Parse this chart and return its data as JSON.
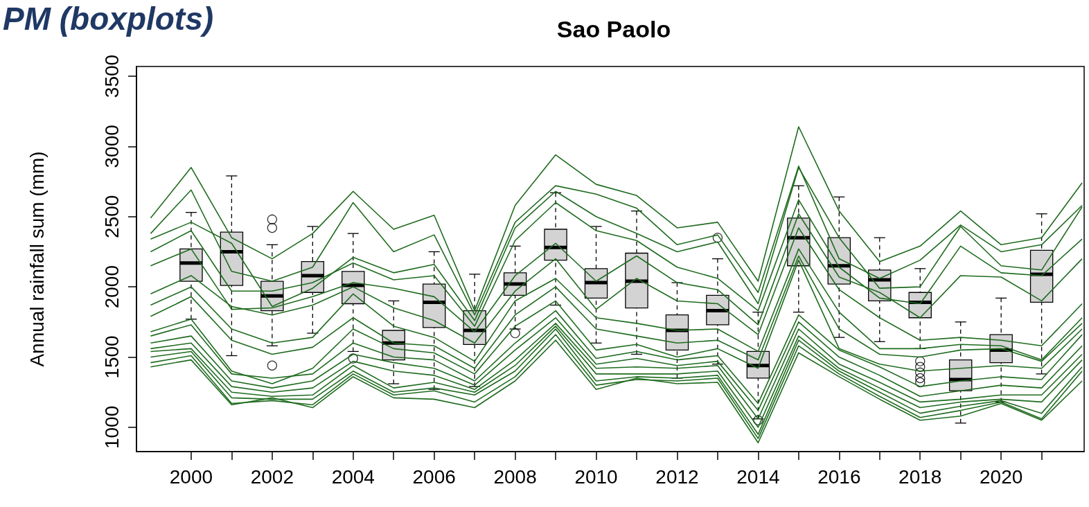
{
  "chart_data": {
    "type": "box",
    "title": "Sao Paolo",
    "ylabel": "Annual rainfall sum (mm)",
    "annotations": [
      "PM (boxplots)"
    ],
    "xlim": [
      1998.65,
      2022.05
    ],
    "xticks": [
      2000,
      {
        "value": 2001,
        "label": null
      },
      2002,
      {
        "value": 2003,
        "label": null
      },
      2004,
      {
        "value": 2005,
        "label": null
      },
      2006,
      {
        "value": 2007,
        "label": null
      },
      2008,
      {
        "value": 2009,
        "label": null
      },
      2010,
      {
        "value": 2011,
        "label": null
      },
      2012,
      {
        "value": 2013,
        "label": null
      },
      2014,
      {
        "value": 2015,
        "label": null
      },
      2016,
      {
        "value": 2017,
        "label": null
      },
      2018,
      {
        "value": 2019,
        "label": null
      },
      2020,
      {
        "value": 2021,
        "label": null
      }
    ],
    "ylim": [
      827,
      3569
    ],
    "yticks": [
      1000,
      1500,
      2000,
      2500,
      3000,
      3500
    ],
    "x": [
      1999,
      2000,
      2001,
      2002,
      2003,
      2004,
      2005,
      2006,
      2007,
      2008,
      2009,
      2010,
      2011,
      2012,
      2013,
      2014,
      2015,
      2016,
      2017,
      2018,
      2019,
      2020,
      2021,
      2022
    ],
    "series": [
      {
        "color": "#d3d3d3",
        "x": [
          2000,
          2001,
          2002,
          2003,
          2004,
          2005,
          2006,
          2007,
          2008,
          2009,
          2010,
          2011,
          2012,
          2013,
          2014,
          2015,
          2016,
          2017,
          2018,
          2019,
          2020,
          2021
        ],
        "boxes": [
          {
            "low": 1770,
            "q1": 2040,
            "median": 2170,
            "q3": 2270,
            "high": 2530
          },
          {
            "low": 1510,
            "q1": 2010,
            "median": 2250,
            "q3": 2390,
            "high": 2790
          },
          {
            "low": 1580,
            "q1": 1830,
            "median": 1935,
            "q3": 2040,
            "high": 2300,
            "outliers": [
              2480,
              2420,
              1440
            ]
          },
          {
            "low": 1670,
            "q1": 1960,
            "median": 2080,
            "q3": 2180,
            "high": 2430
          },
          {
            "low": 1540,
            "q1": 1880,
            "median": 2010,
            "q3": 2110,
            "high": 2380,
            "outliers": [
              1490
            ]
          },
          {
            "low": 1310,
            "q1": 1480,
            "median": 1600,
            "q3": 1690,
            "high": 1900
          },
          {
            "low": 1270,
            "q1": 1710,
            "median": 1890,
            "q3": 2020,
            "high": 2250
          },
          {
            "low": 1290,
            "q1": 1590,
            "median": 1690,
            "q3": 1830,
            "high": 2090
          },
          {
            "low": 1700,
            "q1": 1940,
            "median": 2020,
            "q3": 2100,
            "high": 2290,
            "outliers": [
              1670
            ]
          },
          {
            "low": 1870,
            "q1": 2190,
            "median": 2280,
            "q3": 2410,
            "high": 2670
          },
          {
            "low": 1600,
            "q1": 1920,
            "median": 2030,
            "q3": 2130,
            "high": 2430
          },
          {
            "low": 1520,
            "q1": 1850,
            "median": 2040,
            "q3": 2240,
            "high": 2540
          },
          {
            "low": 1350,
            "q1": 1550,
            "median": 1690,
            "q3": 1800,
            "high": 2030
          },
          {
            "low": 1450,
            "q1": 1730,
            "median": 1830,
            "q3": 1940,
            "high": 2200,
            "outliers": [
              2350
            ]
          },
          {
            "low": 1060,
            "q1": 1350,
            "median": 1440,
            "q3": 1540,
            "high": 1820,
            "outliers": [
              1050
            ]
          },
          {
            "low": 1820,
            "q1": 2150,
            "median": 2350,
            "q3": 2490,
            "high": 2720
          },
          {
            "low": 1640,
            "q1": 2020,
            "median": 2150,
            "q3": 2350,
            "high": 2640
          },
          {
            "low": 1610,
            "q1": 1900,
            "median": 2050,
            "q3": 2120,
            "high": 2350
          },
          {
            "low": 1560,
            "q1": 1780,
            "median": 1890,
            "q3": 1960,
            "high": 2130,
            "outliers": [
              1470,
              1430,
              1390,
              1350,
              1320
            ]
          },
          {
            "low": 1030,
            "q1": 1260,
            "median": 1340,
            "q3": 1480,
            "high": 1750
          },
          {
            "low": 1180,
            "q1": 1460,
            "median": 1550,
            "q3": 1660,
            "high": 1920
          },
          {
            "low": 1380,
            "q1": 1890,
            "median": 2090,
            "q3": 2260,
            "high": 2520
          }
        ]
      },
      {
        "type": "line",
        "color": "#1e6b1e",
        "values": [
          2490,
          2850,
          2350,
          2200,
          2380,
          2680,
          2410,
          2510,
          1830,
          2580,
          2940,
          2730,
          2650,
          2420,
          2460,
          2040,
          3140,
          2540,
          2180,
          2290,
          2540,
          2300,
          2350,
          2740
        ]
      },
      {
        "type": "line",
        "color": "#1e6b1e",
        "values": [
          2380,
          2690,
          2110,
          2040,
          2140,
          2600,
          2250,
          2370,
          1800,
          2460,
          2720,
          2660,
          2560,
          2300,
          2370,
          1960,
          2860,
          2200,
          2060,
          2190,
          2440,
          2250,
          2300,
          2580
        ]
      },
      {
        "type": "line",
        "color": "#1e6b1e",
        "values": [
          2340,
          2460,
          2310,
          1860,
          1990,
          2210,
          2100,
          2160,
          1760,
          2420,
          2680,
          2500,
          2380,
          2250,
          2320,
          1880,
          2850,
          2350,
          1990,
          2000,
          2430,
          2150,
          2120,
          2570
        ]
      },
      {
        "type": "line",
        "color": "#1e6b1e",
        "values": [
          2250,
          2400,
          1970,
          1970,
          2030,
          2170,
          2050,
          2080,
          1720,
          2330,
          2600,
          2400,
          2330,
          2140,
          2060,
          1830,
          2620,
          2140,
          1920,
          1880,
          2290,
          2100,
          2080,
          2340
        ]
      },
      {
        "type": "line",
        "color": "#1e6b1e",
        "values": [
          2150,
          2270,
          1840,
          1850,
          1930,
          2030,
          1990,
          1930,
          1680,
          2080,
          2310,
          2040,
          2220,
          2030,
          1980,
          1730,
          2520,
          2070,
          1960,
          1780,
          2080,
          2070,
          1900,
          2200
        ]
      },
      {
        "type": "line",
        "color": "#1e6b1e",
        "values": [
          1950,
          2080,
          1860,
          1800,
          1870,
          2000,
          1850,
          1760,
          1600,
          1970,
          2200,
          1840,
          2060,
          1900,
          1880,
          1660,
          2420,
          1980,
          1780,
          1620,
          1640,
          1620,
          1580,
          1880
        ]
      },
      {
        "type": "line",
        "color": "#1e6b1e",
        "values": [
          1870,
          2000,
          1700,
          1600,
          1640,
          1950,
          1720,
          1640,
          1470,
          1900,
          2060,
          1780,
          1740,
          1690,
          1700,
          1540,
          2270,
          1820,
          1560,
          1560,
          1590,
          1580,
          1480,
          1780
        ]
      },
      {
        "type": "line",
        "color": "#1e6b1e",
        "values": [
          1790,
          1930,
          1620,
          1520,
          1570,
          1780,
          1600,
          1580,
          1420,
          1800,
          2000,
          1700,
          1650,
          1600,
          1620,
          1480,
          2220,
          1700,
          1520,
          1500,
          1550,
          1560,
          1470,
          1740
        ]
      },
      {
        "type": "line",
        "color": "#1e6b1e",
        "values": [
          1680,
          1770,
          1400,
          1310,
          1420,
          1700,
          1560,
          1530,
          1380,
          1720,
          1900,
          1550,
          1590,
          1500,
          1560,
          1420,
          2190,
          1560,
          1450,
          1400,
          1420,
          1440,
          1420,
          1700
        ]
      },
      {
        "type": "line",
        "color": "#1e6b1e",
        "values": [
          1650,
          1730,
          1380,
          1350,
          1380,
          1600,
          1500,
          1480,
          1330,
          1600,
          1830,
          1490,
          1540,
          1480,
          1510,
          1170,
          1800,
          1550,
          1430,
          1290,
          1330,
          1360,
          1340,
          1660
        ]
      },
      {
        "type": "line",
        "color": "#1e6b1e",
        "values": [
          1600,
          1650,
          1330,
          1280,
          1330,
          1520,
          1460,
          1420,
          1300,
          1550,
          1780,
          1450,
          1490,
          1440,
          1470,
          1120,
          1750,
          1500,
          1370,
          1220,
          1260,
          1300,
          1280,
          1580
        ]
      },
      {
        "type": "line",
        "color": "#1e6b1e",
        "values": [
          1560,
          1600,
          1290,
          1250,
          1280,
          1470,
          1400,
          1370,
          1270,
          1480,
          1740,
          1420,
          1430,
          1420,
          1440,
          1060,
          1700,
          1450,
          1320,
          1180,
          1200,
          1230,
          1230,
          1520
        ]
      },
      {
        "type": "line",
        "color": "#1e6b1e",
        "values": [
          1540,
          1560,
          1250,
          1220,
          1230,
          1440,
          1280,
          1320,
          1250,
          1440,
          1720,
          1380,
          1380,
          1380,
          1400,
          1000,
          1650,
          1420,
          1280,
          1140,
          1180,
          1200,
          1180,
          1480
        ]
      },
      {
        "type": "line",
        "color": "#1e6b1e",
        "values": [
          1500,
          1540,
          1210,
          1200,
          1200,
          1400,
          1250,
          1280,
          1230,
          1400,
          1700,
          1330,
          1360,
          1350,
          1370,
          950,
          1620,
          1400,
          1250,
          1100,
          1150,
          1190,
          1100,
          1430
        ]
      },
      {
        "type": "line",
        "color": "#1e6b1e",
        "values": [
          1460,
          1510,
          1170,
          1190,
          1160,
          1380,
          1230,
          1260,
          1180,
          1360,
          1660,
          1300,
          1340,
          1330,
          1350,
          920,
          1580,
          1380,
          1220,
          1070,
          1120,
          1180,
          1060,
          1400
        ]
      },
      {
        "type": "line",
        "color": "#1e6b1e",
        "values": [
          1430,
          1480,
          1160,
          1210,
          1140,
          1360,
          1210,
          1200,
          1140,
          1330,
          1620,
          1270,
          1350,
          1310,
          1320,
          890,
          1530,
          1360,
          1200,
          1050,
          1080,
          1170,
          1050,
          1330
        ]
      }
    ]
  }
}
